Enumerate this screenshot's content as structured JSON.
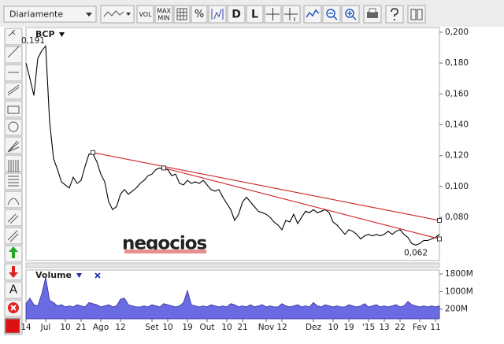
{
  "toolbar": {
    "period": "Diariamente",
    "vol": "VOL",
    "max": "MAX",
    "min": "MIN",
    "percent": "%",
    "d": "D",
    "l": "L"
  },
  "sidebar": {
    "text_tool": "A"
  },
  "watermark": "negocios",
  "chart_data": [
    {
      "type": "line",
      "title": "BCP",
      "series": [
        {
          "name": "BCP",
          "color": "#000000",
          "values": [
            0.18,
            0.17,
            0.159,
            0.183,
            0.188,
            0.191,
            0.142,
            0.118,
            0.111,
            0.103,
            0.101,
            0.099,
            0.106,
            0.102,
            0.104,
            0.113,
            0.121,
            0.121,
            0.116,
            0.108,
            0.103,
            0.09,
            0.085,
            0.087,
            0.095,
            0.098,
            0.095,
            0.097,
            0.099,
            0.102,
            0.104,
            0.107,
            0.108,
            0.111,
            0.112,
            0.111,
            0.111,
            0.107,
            0.108,
            0.102,
            0.101,
            0.104,
            0.102,
            0.103,
            0.102,
            0.104,
            0.101,
            0.098,
            0.097,
            0.098,
            0.093,
            0.089,
            0.085,
            0.078,
            0.082,
            0.09,
            0.093,
            0.09,
            0.087,
            0.084,
            0.083,
            0.082,
            0.08,
            0.077,
            0.075,
            0.072,
            0.078,
            0.077,
            0.082,
            0.076,
            0.08,
            0.084,
            0.083,
            0.085,
            0.083,
            0.084,
            0.085,
            0.083,
            0.077,
            0.075,
            0.072,
            0.069,
            0.072,
            0.071,
            0.069,
            0.066,
            0.068,
            0.069,
            0.068,
            0.069,
            0.068,
            0.069,
            0.071,
            0.069,
            0.071,
            0.072,
            0.069,
            0.067,
            0.063,
            0.062,
            0.063,
            0.065,
            0.065,
            0.066,
            0.067,
            0.069
          ]
        }
      ],
      "annotations": [
        {
          "label": "0,191",
          "value": 0.191
        },
        {
          "label": "0,062",
          "value": 0.062
        }
      ],
      "trendlines": [
        {
          "color": "#cc2222",
          "x": [
            17,
            105
          ],
          "y": [
            0.122,
            0.078
          ]
        },
        {
          "color": "#cc2222",
          "x": [
            35,
            105
          ],
          "y": [
            0.112,
            0.066
          ]
        }
      ],
      "ylim": [
        0.052,
        0.203
      ],
      "yticks": [
        {
          "value": 0.2,
          "label": "0,200"
        },
        {
          "value": 0.18,
          "label": "0,180"
        },
        {
          "value": 0.16,
          "label": "0,160"
        },
        {
          "value": 0.14,
          "label": "0,140"
        },
        {
          "value": 0.12,
          "label": "0,120"
        },
        {
          "value": 0.1,
          "label": "0,100"
        },
        {
          "value": 0.08,
          "label": "0,080"
        }
      ]
    },
    {
      "type": "area",
      "title": "Volume",
      "categories": [
        "14",
        null,
        null,
        null,
        null,
        "Jul",
        null,
        null,
        null,
        null,
        "10",
        null,
        null,
        null,
        "21",
        null,
        null,
        null,
        null,
        "Ago",
        null,
        null,
        null,
        null,
        "12",
        null,
        null,
        null,
        null,
        null,
        null,
        null,
        "Set",
        null,
        null,
        null,
        "10",
        null,
        null,
        null,
        null,
        "19",
        null,
        null,
        null,
        null,
        "Out",
        null,
        null,
        null,
        null,
        "10",
        null,
        null,
        null,
        "21",
        null,
        null,
        null,
        null,
        null,
        "Nov",
        null,
        null,
        null,
        "12",
        null,
        null,
        null,
        null,
        null,
        null,
        null,
        "Dez",
        null,
        null,
        null,
        null,
        "10",
        null,
        null,
        null,
        "19",
        null,
        null,
        null,
        null,
        "'15",
        null,
        null,
        null,
        "13",
        null,
        null,
        null,
        "22",
        null,
        null,
        null,
        null,
        "Fev",
        null,
        null,
        null,
        "11",
        null
      ],
      "series": [
        {
          "name": "Volume",
          "color": "#5a5ae0",
          "values": [
            450,
            700,
            400,
            350,
            900,
            1650,
            600,
            500,
            350,
            400,
            300,
            350,
            300,
            400,
            350,
            300,
            500,
            450,
            400,
            300,
            350,
            400,
            300,
            350,
            650,
            700,
            400,
            350,
            300,
            300,
            350,
            300,
            400,
            350,
            300,
            450,
            400,
            350,
            300,
            350,
            500,
            1050,
            400,
            350,
            300,
            350,
            300,
            400,
            350,
            300,
            350,
            300,
            450,
            400,
            300,
            350,
            300,
            400,
            300,
            350,
            400,
            300,
            350,
            300,
            300,
            450,
            350,
            300,
            350,
            400,
            300,
            350,
            300,
            500,
            350,
            300,
            400,
            350,
            300,
            350,
            300,
            300,
            400,
            350,
            300,
            350,
            450,
            300,
            350,
            400,
            300,
            350,
            300,
            350,
            400,
            300,
            350,
            550,
            400,
            350,
            300,
            350,
            300,
            350,
            300,
            350
          ]
        }
      ],
      "ylim": [
        -240,
        1980
      ],
      "yticks": [
        {
          "value": 1800,
          "label": "1800M"
        },
        {
          "value": 1000,
          "label": "1000M"
        },
        {
          "value": 200,
          "label": "200M"
        }
      ]
    }
  ]
}
